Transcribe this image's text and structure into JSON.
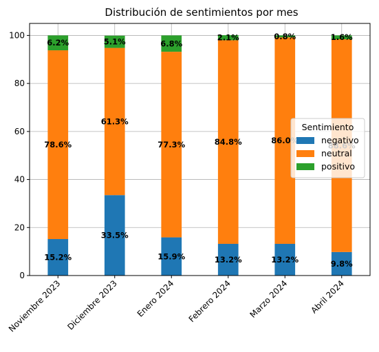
{
  "chart_data": {
    "type": "bar",
    "stacked": true,
    "title": "Distribución de sentimientos por mes",
    "xlabel": "",
    "ylabel": "",
    "ylim": [
      0,
      105
    ],
    "yticks": [
      0,
      20,
      40,
      60,
      80,
      100
    ],
    "grid": true,
    "categories": [
      "Noviembre 2023",
      "Diciembre 2023",
      "Enero 2024",
      "Febrero 2024",
      "Marzo 2024",
      "Abril 2024"
    ],
    "series": [
      {
        "name": "negativo",
        "color": "#1f77b4",
        "values": [
          15.2,
          33.5,
          15.9,
          13.2,
          13.2,
          9.8
        ],
        "labels": [
          "15.2%",
          "33.5%",
          "15.9%",
          "13.2%",
          "13.2%",
          "9.8%"
        ]
      },
      {
        "name": "neutral",
        "color": "#ff7f0e",
        "values": [
          78.6,
          61.3,
          77.3,
          84.8,
          86.0,
          88.6
        ],
        "labels": [
          "78.6%",
          "61.3%",
          "77.3%",
          "84.8%",
          "86.0%",
          "88.6%"
        ]
      },
      {
        "name": "positivo",
        "color": "#2ca02c",
        "values": [
          6.2,
          5.1,
          6.8,
          2.1,
          0.8,
          1.6
        ],
        "labels": [
          "6.2%",
          "5.1%",
          "6.8%",
          "2.1%",
          "0.8%",
          "1.6%"
        ]
      }
    ],
    "legend": {
      "title": "Sentimiento",
      "placement": "center-right"
    }
  }
}
